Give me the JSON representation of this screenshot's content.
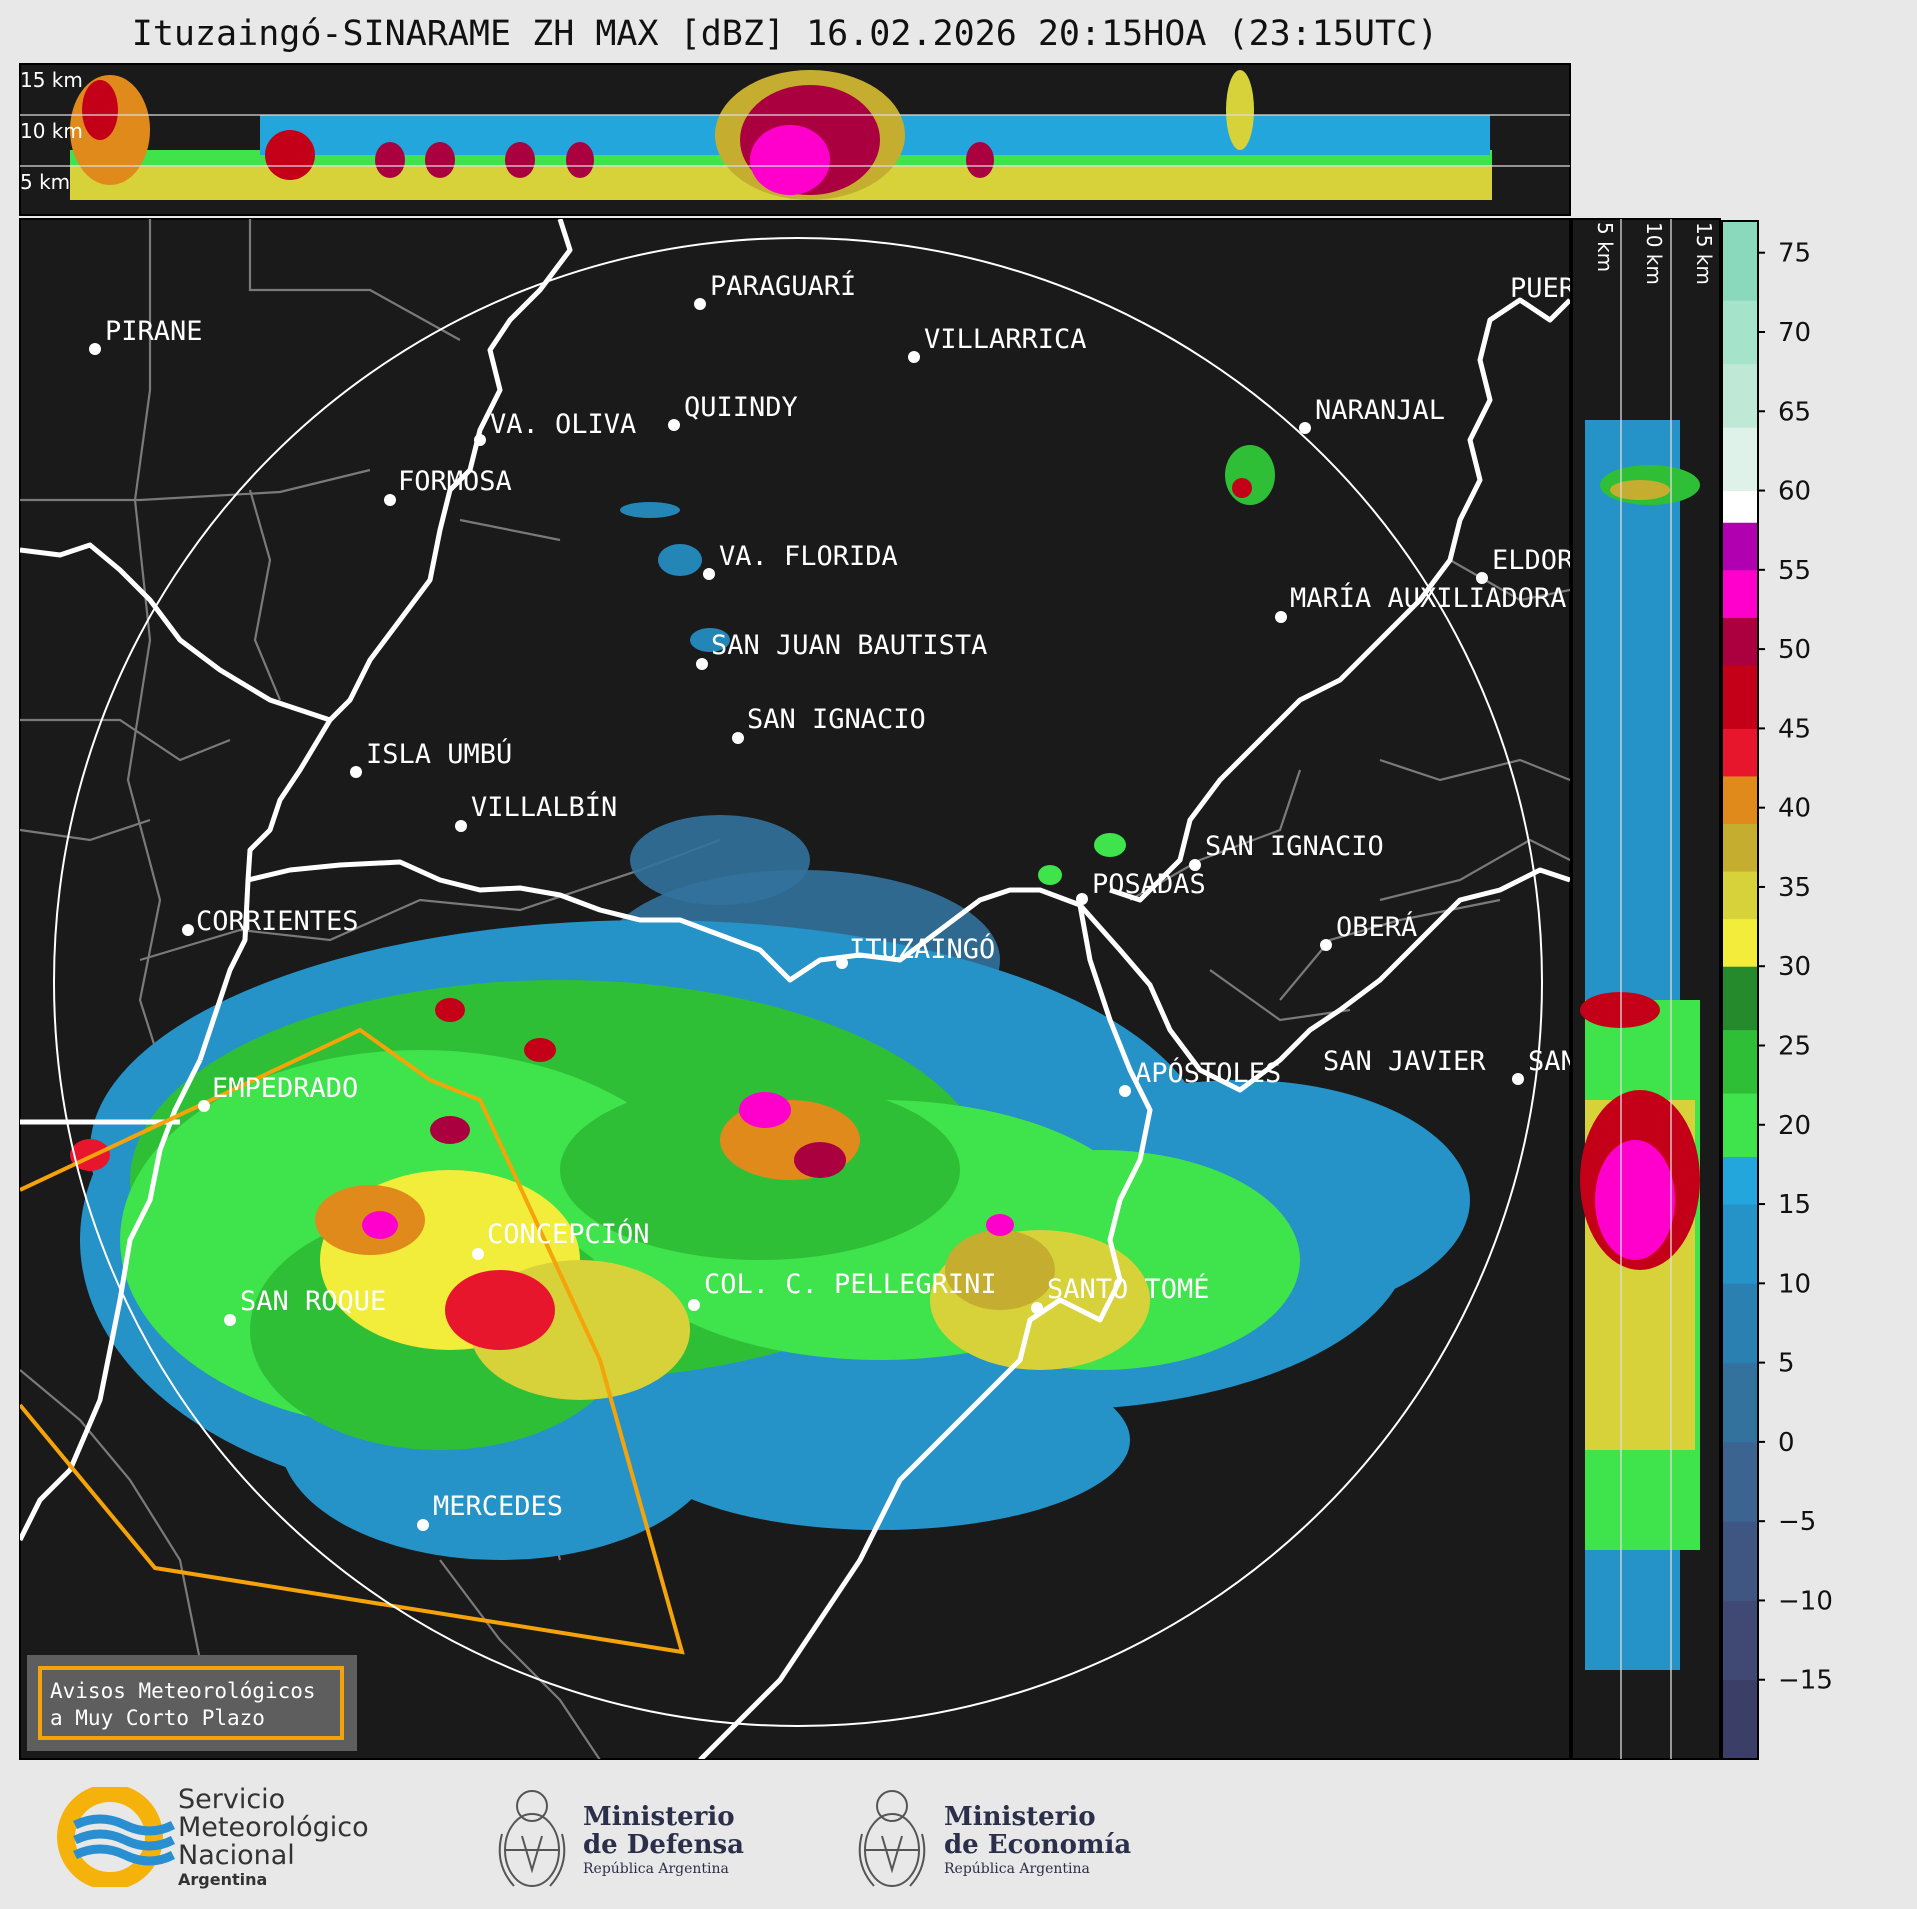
{
  "title": "Ituzaingó-SINARAME ZH MAX [dBZ] 16.02.2026 20:15HOA (23:15UTC)",
  "top_panel": {
    "height_labels": [
      "15 km",
      "10 km",
      "5 km"
    ]
  },
  "side_panel": {
    "height_labels": [
      "5 km",
      "10 km",
      "15 km"
    ]
  },
  "colorbar": {
    "units": "dBZ",
    "ticks": [
      "75",
      "70",
      "65",
      "60",
      "55",
      "50",
      "45",
      "40",
      "35",
      "30",
      "25",
      "20",
      "15",
      "10",
      "5",
      "0",
      "−5",
      "−10",
      "−15"
    ],
    "range": [
      -20,
      77
    ],
    "bands": [
      {
        "from": -20,
        "to": -15,
        "color": "#3b3e66"
      },
      {
        "from": -15,
        "to": -10,
        "color": "#404874"
      },
      {
        "from": -10,
        "to": -5,
        "color": "#3f5582"
      },
      {
        "from": -5,
        "to": 0,
        "color": "#3b6491"
      },
      {
        "from": 0,
        "to": 5,
        "color": "#33729d"
      },
      {
        "from": 5,
        "to": 10,
        "color": "#2a80b0"
      },
      {
        "from": 10,
        "to": 15,
        "color": "#2592c8"
      },
      {
        "from": 15,
        "to": 18,
        "color": "#22a6dc"
      },
      {
        "from": 18,
        "to": 22,
        "color": "#3fe34b"
      },
      {
        "from": 22,
        "to": 26,
        "color": "#2fbf36"
      },
      {
        "from": 26,
        "to": 30,
        "color": "#258a2b"
      },
      {
        "from": 30,
        "to": 33,
        "color": "#f2ec3a"
      },
      {
        "from": 33,
        "to": 36,
        "color": "#d7d23a"
      },
      {
        "from": 36,
        "to": 39,
        "color": "#c5ad30"
      },
      {
        "from": 39,
        "to": 42,
        "color": "#e08a1c"
      },
      {
        "from": 42,
        "to": 45,
        "color": "#e8162c"
      },
      {
        "from": 45,
        "to": 49,
        "color": "#c40018"
      },
      {
        "from": 49,
        "to": 52,
        "color": "#aa0040"
      },
      {
        "from": 52,
        "to": 55,
        "color": "#ff00cc"
      },
      {
        "from": 55,
        "to": 58,
        "color": "#b000b0"
      },
      {
        "from": 58,
        "to": 60,
        "color": "#ffffff"
      },
      {
        "from": 60,
        "to": 64,
        "color": "#dff2ea"
      },
      {
        "from": 64,
        "to": 68,
        "color": "#bfe9d6"
      },
      {
        "from": 68,
        "to": 72,
        "color": "#a5e3cb"
      },
      {
        "from": 72,
        "to": 77,
        "color": "#8ad9bd"
      }
    ]
  },
  "places": [
    {
      "name": "PARAGUARÍ"
    },
    {
      "name": "VILLARRICA"
    },
    {
      "name": "PIRANE"
    },
    {
      "name": "QUIINDY"
    },
    {
      "name": "VA. OLIVA"
    },
    {
      "name": "NARANJAL"
    },
    {
      "name": "FORMOSA"
    },
    {
      "name": "VA. FLORIDA"
    },
    {
      "name": "ELDORADO"
    },
    {
      "name": "MARÍA AUXILIADORA"
    },
    {
      "name": "SAN JUAN BAUTISTA"
    },
    {
      "name": "SAN IGNACIO"
    },
    {
      "name": "ISLA UMBÚ"
    },
    {
      "name": "VILLALBÍN"
    },
    {
      "name": "SAN IGNACIO"
    },
    {
      "name": "POSADAS"
    },
    {
      "name": "CORRIENTES"
    },
    {
      "name": "ITUZAINGÓ"
    },
    {
      "name": "OBERÁ"
    },
    {
      "name": "EMPEDRADO"
    },
    {
      "name": "APÓSTOLES"
    },
    {
      "name": "SAN JAVIER"
    },
    {
      "name": "SAN"
    },
    {
      "name": "CONCEPCIÓN"
    },
    {
      "name": "COL. C. PELLEGRINI"
    },
    {
      "name": "SANTO TOMÉ"
    },
    {
      "name": "SAN ROQUE"
    },
    {
      "name": "MERCEDES"
    },
    {
      "name": "PUERTO"
    }
  ],
  "warning_box": {
    "line1": "Avisos Meteorológicos",
    "line2": "a Muy Corto Plazo"
  },
  "logos": {
    "smn": {
      "line1": "Servicio",
      "line2": "Meteorológico",
      "line3": "Nacional",
      "line4": "Argentina"
    },
    "defensa": {
      "line1": "Ministerio",
      "line2": "de Defensa",
      "line3": "República Argentina"
    },
    "economia": {
      "line1": "Ministerio",
      "line2": "de Economía",
      "line3": "República Argentina"
    }
  },
  "colors": {
    "map_bg": "#1a1a1a",
    "warning": "#f5a30a",
    "river": "#ffffff",
    "border": "#808080"
  }
}
